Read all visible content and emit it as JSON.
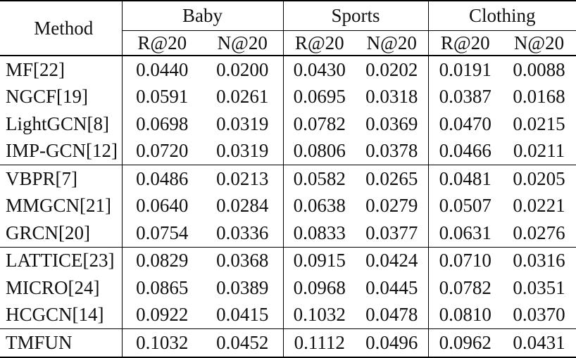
{
  "table": {
    "method_header": "Method",
    "groups": [
      {
        "label": "Baby",
        "metrics": [
          "R@20",
          "N@20"
        ]
      },
      {
        "label": "Sports",
        "metrics": [
          "R@20",
          "N@20"
        ]
      },
      {
        "label": "Clothing",
        "metrics": [
          "R@20",
          "N@20"
        ]
      }
    ],
    "rows": [
      {
        "method": "MF[22]",
        "values": [
          "0.0440",
          "0.0200",
          "0.0430",
          "0.0202",
          "0.0191",
          "0.0088"
        ]
      },
      {
        "method": "NGCF[19]",
        "values": [
          "0.0591",
          "0.0261",
          "0.0695",
          "0.0318",
          "0.0387",
          "0.0168"
        ]
      },
      {
        "method": "LightGCN[8]",
        "values": [
          "0.0698",
          "0.0319",
          "0.0782",
          "0.0369",
          "0.0470",
          "0.0215"
        ]
      },
      {
        "method": "IMP-GCN[12]",
        "values": [
          "0.0720",
          "0.0319",
          "0.0806",
          "0.0378",
          "0.0466",
          "0.0211"
        ]
      },
      {
        "method": "VBPR[7]",
        "values": [
          "0.0486",
          "0.0213",
          "0.0582",
          "0.0265",
          "0.0481",
          "0.0205"
        ]
      },
      {
        "method": "MMGCN[21]",
        "values": [
          "0.0640",
          "0.0284",
          "0.0638",
          "0.0279",
          "0.0507",
          "0.0221"
        ]
      },
      {
        "method": "GRCN[20]",
        "values": [
          "0.0754",
          "0.0336",
          "0.0833",
          "0.0377",
          "0.0631",
          "0.0276"
        ]
      },
      {
        "method": "LATTICE[23]",
        "values": [
          "0.0829",
          "0.0368",
          "0.0915",
          "0.0424",
          "0.0710",
          "0.0316"
        ]
      },
      {
        "method": "MICRO[24]",
        "values": [
          "0.0865",
          "0.0389",
          "0.0968",
          "0.0445",
          "0.0782",
          "0.0351"
        ]
      },
      {
        "method": "HCGCN[14]",
        "values": [
          "0.0922",
          "0.0415",
          "0.1032",
          "0.0478",
          "0.0810",
          "0.0370"
        ]
      },
      {
        "method": "TMFUN",
        "values": [
          "0.1032",
          "0.0452",
          "0.1112",
          "0.0496",
          "0.0962",
          "0.0431"
        ]
      }
    ],
    "colors": {
      "text": "#111111",
      "rule": "#000000",
      "background": "#ffffff"
    }
  }
}
